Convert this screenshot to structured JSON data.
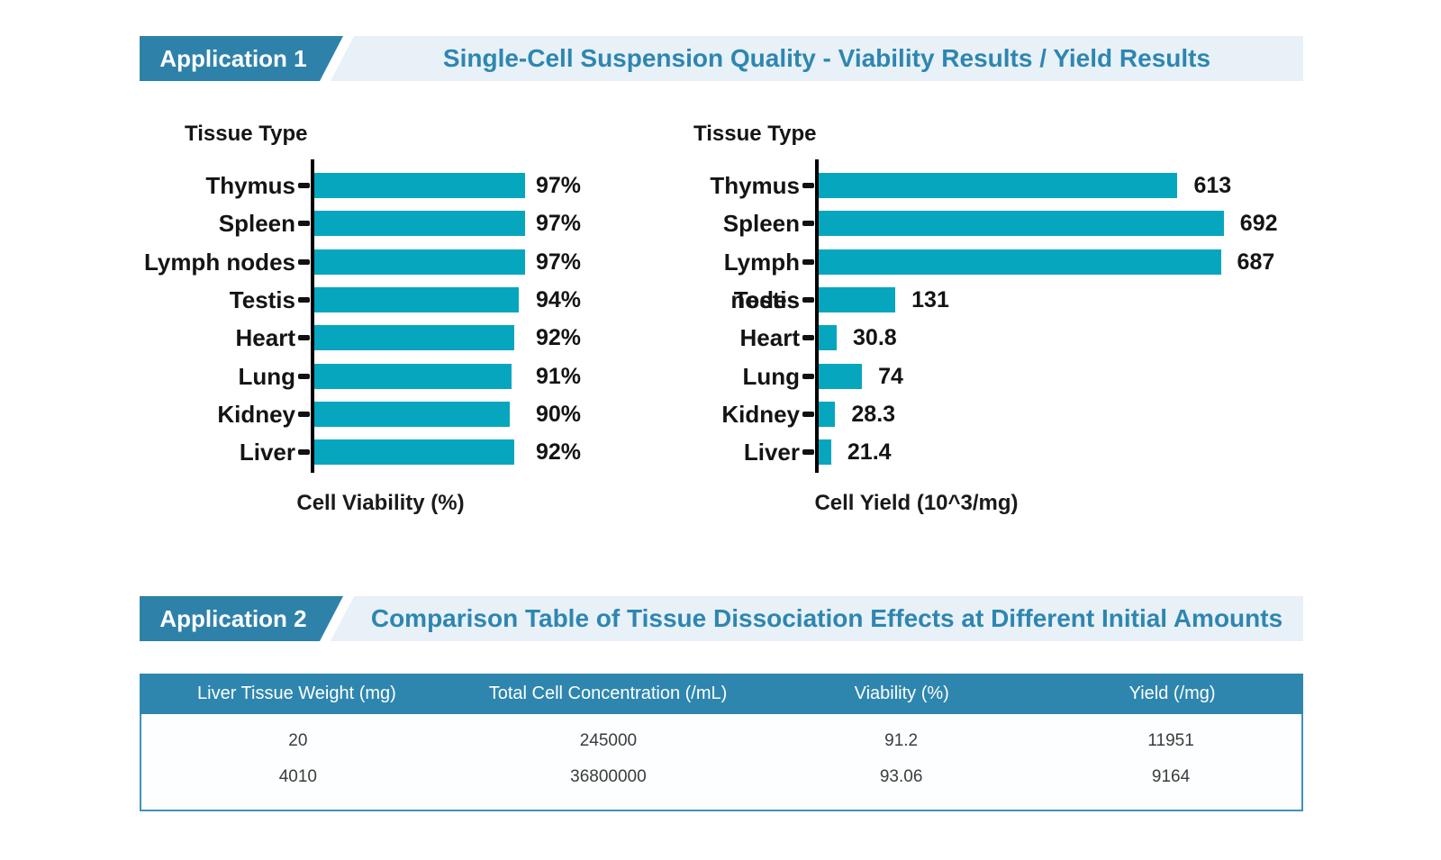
{
  "app1": {
    "tag": "Application 1",
    "title": "Single-Cell Suspension Quality - Viability Results / Yield Results"
  },
  "app2": {
    "tag": "Application 2",
    "title": "Comparison Table of Tissue Dissociation Effects at Different Initial Amounts"
  },
  "colors": {
    "bar": "#07a6bf",
    "tag_background": "#2e82a9",
    "banner_background": "#e8f1f8",
    "title_text": "#2e86b0",
    "table_header_background": "#2e86ae",
    "table_border": "#3f93ba",
    "axis": "#000000"
  },
  "chart_data": [
    {
      "type": "bar",
      "orientation": "horizontal",
      "title": "Tissue Type",
      "xlabel": "Cell Viability (%)",
      "ylabel": "Tissue Type",
      "categories": [
        "Thymus",
        "Spleen",
        "Lymph nodes",
        "Testis",
        "Heart",
        "Lung",
        "Kidney",
        "Liver"
      ],
      "values": [
        97,
        97,
        97,
        94,
        92,
        91,
        90,
        92
      ],
      "value_labels": [
        "97%",
        "97%",
        "97%",
        "94%",
        "92%",
        "91%",
        "90%",
        "92%"
      ],
      "xlim": [
        0,
        100
      ],
      "grid": false,
      "legend": false,
      "bar_color": "#07a6bf",
      "value_label_placement": "fixed-column"
    },
    {
      "type": "bar",
      "orientation": "horizontal",
      "title": "Tissue Type",
      "xlabel": "Cell Yield (10^3/mg)",
      "ylabel": "Tissue Type",
      "categories": [
        "Thymus",
        "Spleen",
        "Lymph nodes",
        "Testis",
        "Heart",
        "Lung",
        "Kidney",
        "Liver"
      ],
      "values": [
        613,
        692,
        687,
        131,
        30.8,
        74,
        28.3,
        21.4
      ],
      "value_labels": [
        "613",
        "692",
        "687",
        "131",
        "30.8",
        "74",
        "28.3",
        "21.4"
      ],
      "xlim": [
        0,
        700
      ],
      "grid": false,
      "legend": false,
      "bar_color": "#07a6bf",
      "value_label_placement": "after-bar"
    },
    {
      "type": "table",
      "columns": [
        "Liver Tissue Weight (mg)",
        "Total Cell Concentration (/mL)",
        "Viability (%)",
        "Yield (/mg)"
      ],
      "rows": [
        [
          "20",
          "245000",
          "91.2",
          "11951"
        ],
        [
          "4010",
          "36800000",
          "93.06",
          "9164"
        ]
      ]
    }
  ]
}
